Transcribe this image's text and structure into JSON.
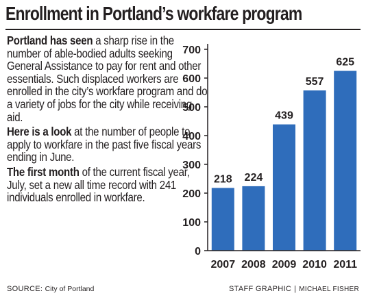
{
  "headline": "Enrollment in Portland’s workfare program",
  "paragraphs": [
    {
      "lead": "Portland has seen",
      "body": " a sharp rise in the number of able-bodied adults seeking General Assistance to pay for rent and other essentials. Such displaced workers are enrolled in the city’s workfare program and do a variety of jobs for the city while receiving aid."
    },
    {
      "lead": "Here is a look",
      "body": " at the number of people to apply to workfare in the past five fiscal years ending in June."
    },
    {
      "lead": "The first month",
      "body": " of the current fiscal year, July, set a new all time record with 241 individuals enrolled in workfare."
    }
  ],
  "footer": {
    "source_label": "SOURCE:",
    "source_value": "City of Portland",
    "credit_label": "STAFF GRAPHIC",
    "credit_separator": "|",
    "credit_name": "MICHAEL FISHER"
  },
  "colors": {
    "bar": "#2f6dbb",
    "text": "#231f20",
    "axis": "#231f20"
  },
  "chart_data": {
    "type": "bar",
    "title": "",
    "xlabel": "",
    "ylabel": "",
    "categories": [
      "2007",
      "2008",
      "2009",
      "2010",
      "2011"
    ],
    "values": [
      218,
      224,
      439,
      557,
      625
    ],
    "data_labels": [
      "218",
      "224",
      "439",
      "557",
      "625"
    ],
    "ylim": [
      0,
      700
    ],
    "yticks": [
      0,
      100,
      200,
      300,
      400,
      500,
      600,
      700
    ],
    "grid": false,
    "legend": "none"
  }
}
